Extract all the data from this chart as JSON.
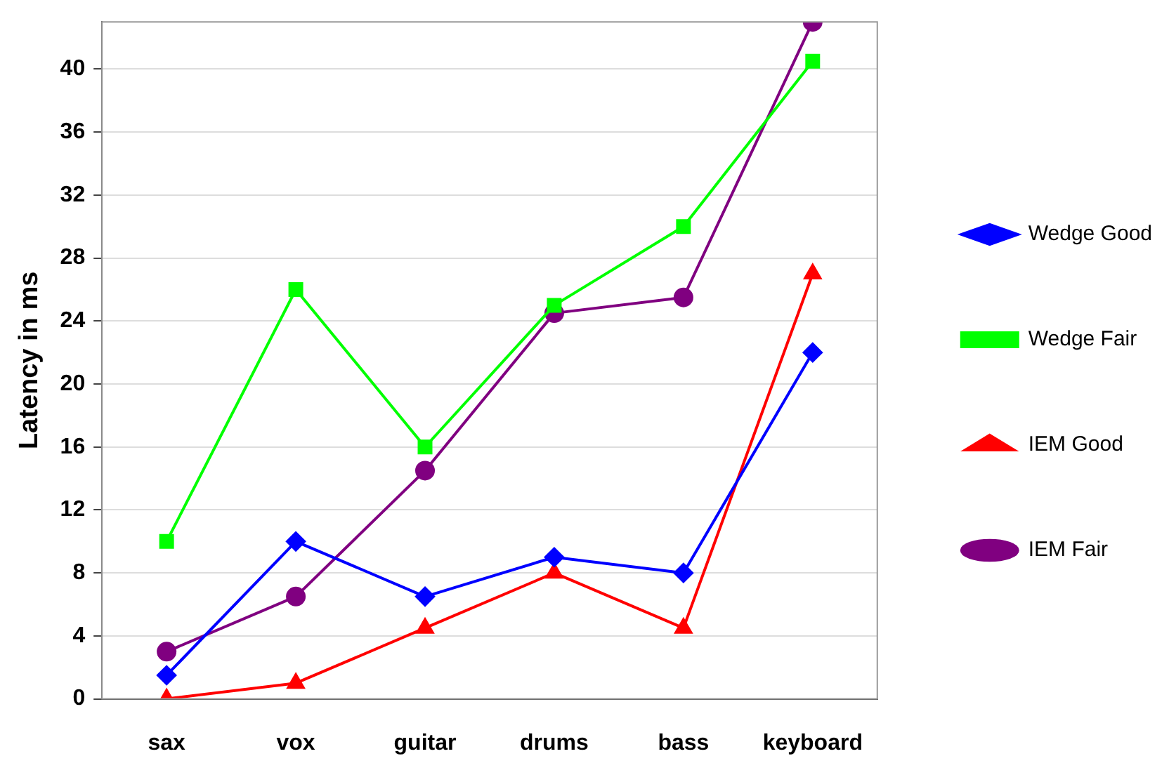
{
  "chart_data": {
    "type": "line",
    "ylabel": "Latency in ms",
    "categories": [
      "sax",
      "vox",
      "guitar",
      "drums",
      "bass",
      "keyboard"
    ],
    "series": [
      {
        "name": "Wedge Good",
        "color": "#0000ff",
        "marker": "diamond",
        "values": [
          1.5,
          10,
          6.5,
          9,
          8,
          22
        ]
      },
      {
        "name": "Wedge Fair",
        "color": "#00ff00",
        "marker": "square",
        "values": [
          10,
          26,
          16,
          25,
          30,
          40.5
        ]
      },
      {
        "name": "IEM Good",
        "color": "#ff0000",
        "marker": "triangle",
        "values": [
          0,
          1,
          4.5,
          8,
          4.5,
          27
        ]
      },
      {
        "name": "IEM Fair",
        "color": "#800080",
        "marker": "circle",
        "values": [
          3,
          6.5,
          14.5,
          24.5,
          25.5,
          43
        ]
      }
    ],
    "ylim": [
      0,
      43
    ],
    "yticks": [
      0,
      4,
      8,
      12,
      16,
      20,
      24,
      28,
      32,
      36,
      40
    ],
    "grid": "y",
    "legend": "right"
  }
}
